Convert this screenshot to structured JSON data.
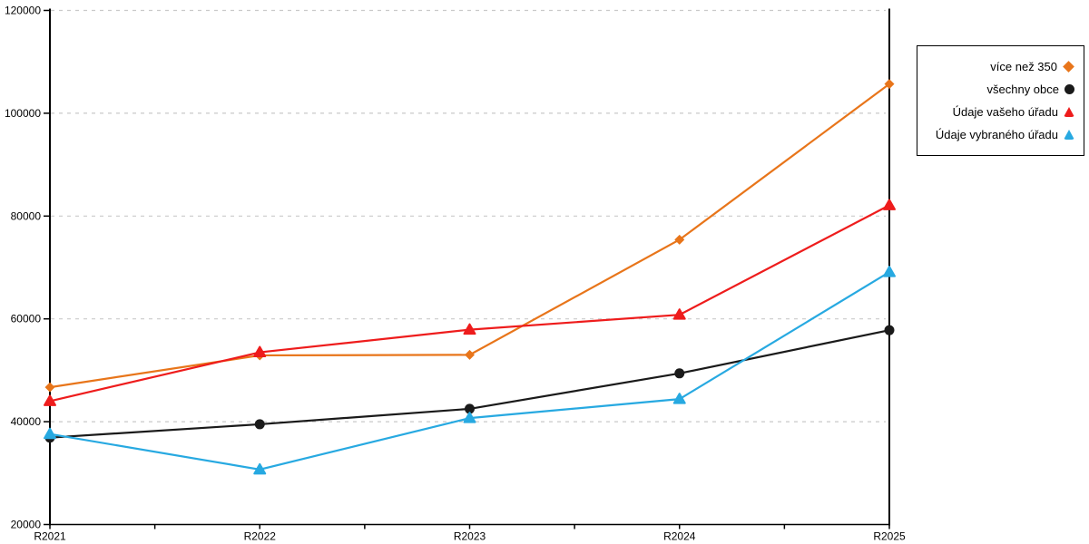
{
  "chart_data": {
    "type": "line",
    "title": "",
    "xlabel": "",
    "ylabel": "",
    "categories": [
      "R2021",
      "R2022",
      "R2023",
      "R2024",
      "R2025"
    ],
    "series": [
      {
        "name": "více než 350",
        "color": "#E8751A",
        "marker": "diamond",
        "values": [
          46700,
          52900,
          53000,
          75400,
          105700
        ]
      },
      {
        "name": "všechny obce",
        "color": "#1A1A1A",
        "marker": "circle",
        "values": [
          36900,
          39500,
          42500,
          49400,
          57800
        ]
      },
      {
        "name": "Údaje vašeho úřadu",
        "color": "#EE1C1C",
        "marker": "triangle",
        "values": [
          44000,
          53500,
          57900,
          60800,
          82100
        ]
      },
      {
        "name": "Údaje vybraného úřadu",
        "color": "#27A9E1",
        "marker": "triangle",
        "values": [
          37600,
          30700,
          40700,
          44400,
          69100
        ]
      }
    ],
    "ylim": [
      20000,
      120000
    ],
    "y_ticks": [
      20000,
      40000,
      60000,
      80000,
      100000,
      120000
    ],
    "grid": "horizontal-dashed",
    "gridline_color": "#C9C9C9",
    "axis_color": "#000000",
    "legend_position": "right"
  }
}
